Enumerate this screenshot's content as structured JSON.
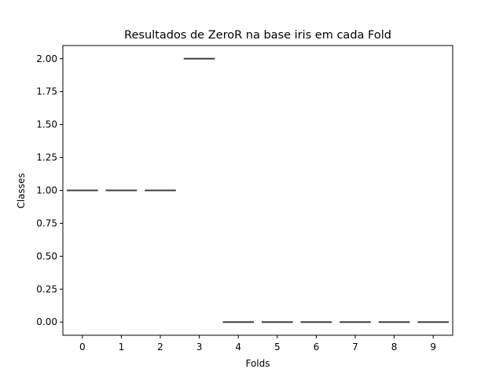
{
  "chart_data": {
    "type": "box",
    "title": "Resultados de ZeroR na base iris em cada Fold",
    "xlabel": "Folds",
    "ylabel": "Classes",
    "categories": [
      "0",
      "1",
      "2",
      "3",
      "4",
      "5",
      "6",
      "7",
      "8",
      "9"
    ],
    "values": [
      1,
      1,
      1,
      2,
      0,
      0,
      0,
      0,
      0,
      0
    ],
    "ylim": [
      -0.1,
      2.1
    ],
    "yticks": [
      0.0,
      0.25,
      0.5,
      0.75,
      1.0,
      1.25,
      1.5,
      1.75,
      2.0
    ],
    "ytick_labels": [
      "0.00",
      "0.25",
      "0.50",
      "0.75",
      "1.00",
      "1.25",
      "1.50",
      "1.75",
      "2.00"
    ],
    "grid": false,
    "legend": "none",
    "line_color": "#3f3f3f"
  }
}
